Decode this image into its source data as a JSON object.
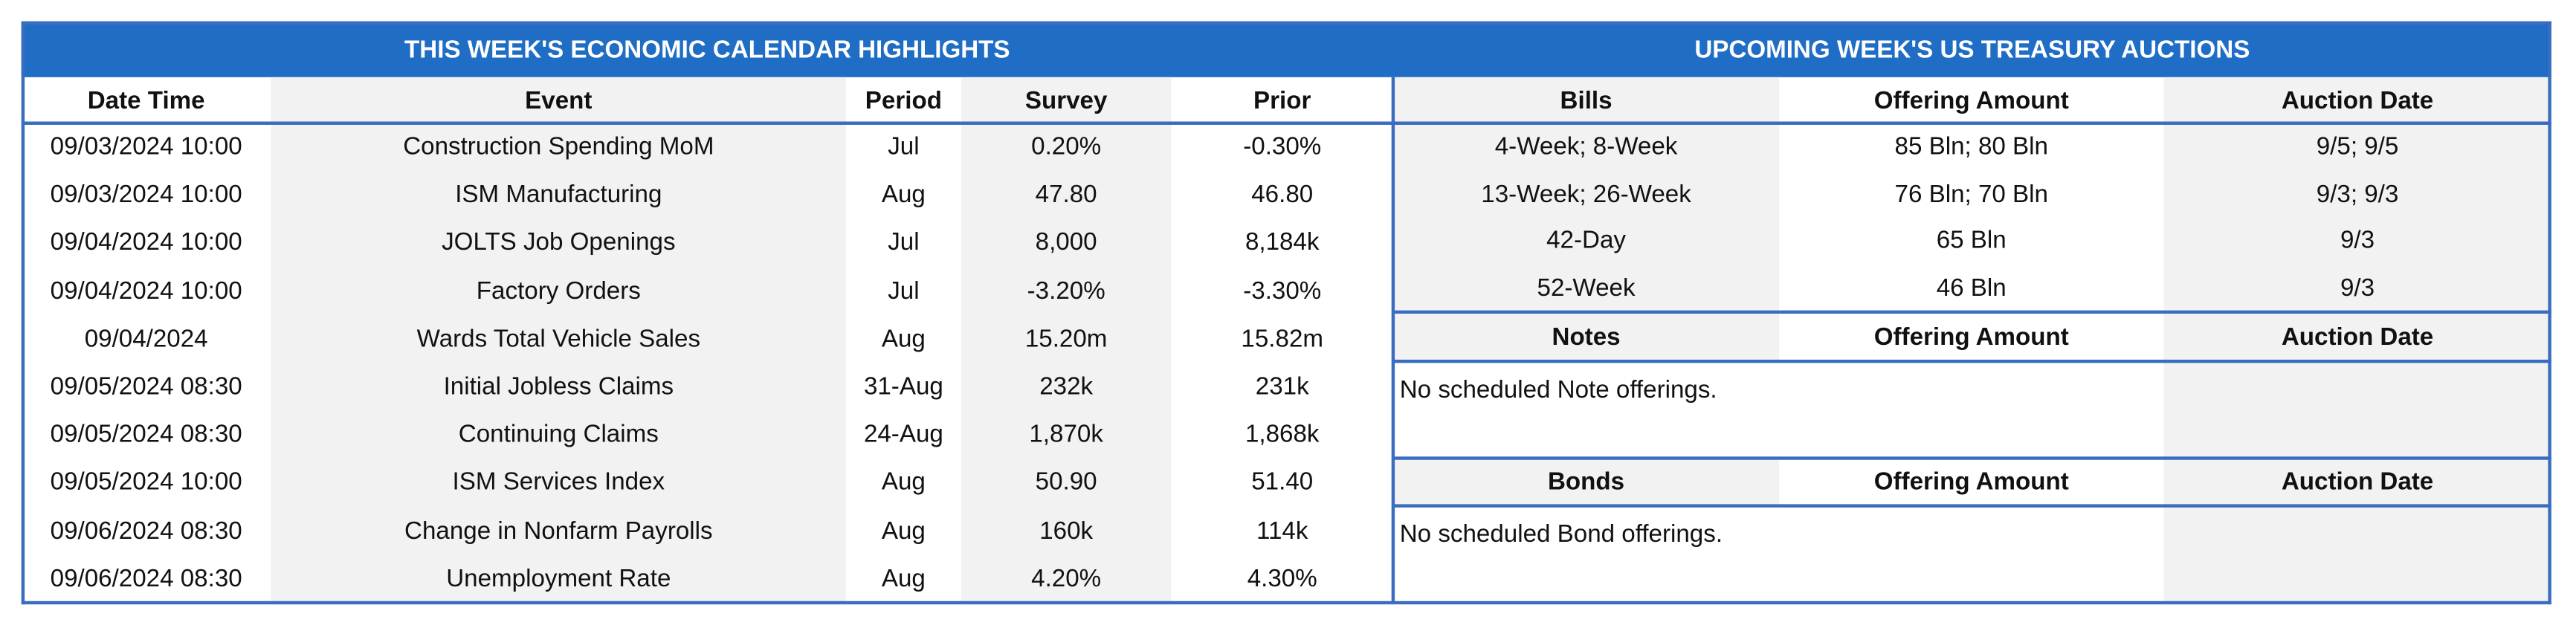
{
  "left": {
    "title": "THIS WEEK'S ECONOMIC CALENDAR HIGHLIGHTS",
    "headers": [
      "Date Time",
      "Event",
      "Period",
      "Survey",
      "Prior"
    ],
    "rows": [
      [
        "09/03/2024 10:00",
        "Construction Spending MoM",
        "Jul",
        "0.20%",
        "-0.30%"
      ],
      [
        "09/03/2024 10:00",
        "ISM Manufacturing",
        "Aug",
        "47.80",
        "46.80"
      ],
      [
        "09/04/2024 10:00",
        "JOLTS Job Openings",
        "Jul",
        "8,000",
        "8,184k"
      ],
      [
        "09/04/2024 10:00",
        "Factory Orders",
        "Jul",
        "-3.20%",
        "-3.30%"
      ],
      [
        "09/04/2024",
        "Wards Total Vehicle Sales",
        "Aug",
        "15.20m",
        "15.82m"
      ],
      [
        "09/05/2024 08:30",
        "Initial Jobless Claims",
        "31-Aug",
        "232k",
        "231k"
      ],
      [
        "09/05/2024 08:30",
        "Continuing Claims",
        "24-Aug",
        "1,870k",
        "1,868k"
      ],
      [
        "09/05/2024 10:00",
        "ISM Services Index",
        "Aug",
        "50.90",
        "51.40"
      ],
      [
        "09/06/2024 08:30",
        "Change in Nonfarm Payrolls",
        "Aug",
        "160k",
        "114k"
      ],
      [
        "09/06/2024 08:30",
        "Unemployment Rate",
        "Aug",
        "4.20%",
        "4.30%"
      ]
    ]
  },
  "right": {
    "title": "UPCOMING WEEK'S US TREASURY AUCTIONS",
    "bills": {
      "headers": [
        "Bills",
        "Offering Amount",
        "Auction Date"
      ],
      "rows": [
        [
          "4-Week; 8-Week",
          "85 Bln; 80 Bln",
          "9/5; 9/5"
        ],
        [
          "13-Week; 26-Week",
          "76 Bln; 70 Bln",
          "9/3; 9/3"
        ],
        [
          "42-Day",
          "65 Bln",
          "9/3"
        ],
        [
          "52-Week",
          "46 Bln",
          "9/3"
        ]
      ]
    },
    "notes": {
      "headers": [
        "Notes",
        "Offering Amount",
        "Auction Date"
      ],
      "message": "No scheduled Note offerings."
    },
    "bonds": {
      "headers": [
        "Bonds",
        "Offering Amount",
        "Auction Date"
      ],
      "message": "No scheduled Bond offerings."
    }
  }
}
